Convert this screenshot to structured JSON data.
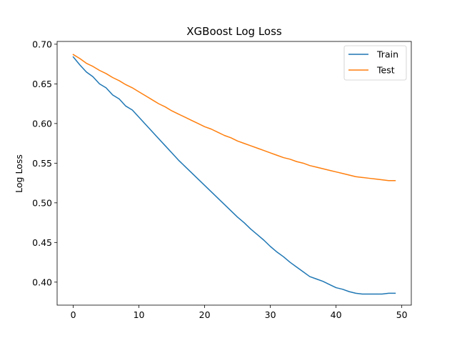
{
  "chart_data": {
    "type": "line",
    "title": "XGBoost Log Loss",
    "xlabel": "",
    "ylabel": "Log Loss",
    "xlim": [
      -2.45,
      51.45
    ],
    "ylim": [
      0.371,
      0.7035
    ],
    "xticks": [
      0,
      10,
      20,
      30,
      40,
      50
    ],
    "yticks": [
      0.4,
      0.45,
      0.5,
      0.55,
      0.6,
      0.65,
      0.7
    ],
    "grid": false,
    "legend_position": "top-right",
    "x": [
      0,
      1,
      2,
      3,
      4,
      5,
      6,
      7,
      8,
      9,
      10,
      11,
      12,
      13,
      14,
      15,
      16,
      17,
      18,
      19,
      20,
      21,
      22,
      23,
      24,
      25,
      26,
      27,
      28,
      29,
      30,
      31,
      32,
      33,
      34,
      35,
      36,
      37,
      38,
      39,
      40,
      41,
      42,
      43,
      44,
      45,
      46,
      47,
      48,
      49
    ],
    "series": [
      {
        "name": "Train",
        "color": "#1f77b4",
        "values": [
          0.684,
          0.674,
          0.665,
          0.659,
          0.65,
          0.645,
          0.636,
          0.631,
          0.622,
          0.617,
          0.608,
          0.599,
          0.59,
          0.581,
          0.572,
          0.563,
          0.554,
          0.546,
          0.538,
          0.53,
          0.522,
          0.514,
          0.506,
          0.498,
          0.49,
          0.482,
          0.475,
          0.467,
          0.46,
          0.453,
          0.445,
          0.438,
          0.432,
          0.425,
          0.419,
          0.413,
          0.407,
          0.404,
          0.401,
          0.397,
          0.393,
          0.391,
          0.388,
          0.386,
          0.385,
          0.385,
          0.385,
          0.385,
          0.386,
          0.386
        ]
      },
      {
        "name": "Test",
        "color": "#ff7f0e",
        "values": [
          0.687,
          0.682,
          0.676,
          0.672,
          0.667,
          0.663,
          0.658,
          0.654,
          0.649,
          0.645,
          0.64,
          0.635,
          0.63,
          0.625,
          0.621,
          0.616,
          0.612,
          0.608,
          0.604,
          0.6,
          0.596,
          0.593,
          0.589,
          0.585,
          0.582,
          0.578,
          0.575,
          0.572,
          0.569,
          0.566,
          0.563,
          0.56,
          0.557,
          0.555,
          0.552,
          0.55,
          0.547,
          0.545,
          0.543,
          0.541,
          0.539,
          0.537,
          0.535,
          0.533,
          0.532,
          0.531,
          0.53,
          0.529,
          0.528,
          0.528
        ]
      }
    ]
  }
}
